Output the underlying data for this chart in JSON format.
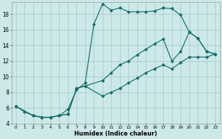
{
  "xlabel": "Humidex (Indice chaleur)",
  "bg_color": "#cce8e8",
  "grid_color": "#aacccc",
  "line_color": "#1a6e6e",
  "xlim": [
    -0.5,
    23.5
  ],
  "ylim": [
    4,
    19.5
  ],
  "xticks": [
    0,
    1,
    2,
    3,
    4,
    5,
    6,
    7,
    8,
    9,
    10,
    11,
    12,
    13,
    14,
    15,
    16,
    17,
    18,
    19,
    20,
    21,
    22,
    23
  ],
  "yticks": [
    4,
    6,
    8,
    10,
    12,
    14,
    16,
    18
  ],
  "series1_x": [
    0,
    1,
    2,
    3,
    4,
    5,
    6,
    7,
    8,
    9,
    10,
    11,
    12,
    13,
    14,
    15,
    16,
    17,
    18,
    19,
    20,
    21,
    22,
    23
  ],
  "series1_y": [
    6.2,
    5.5,
    5.0,
    4.8,
    4.8,
    5.0,
    5.8,
    8.3,
    9.2,
    16.7,
    19.3,
    18.5,
    18.8,
    18.3,
    18.3,
    18.3,
    18.4,
    18.8,
    18.7,
    17.9,
    15.7,
    14.9,
    13.2,
    12.9
  ],
  "series2_x": [
    0,
    2,
    3,
    4,
    5,
    6,
    7,
    8,
    10,
    11,
    12,
    13,
    14,
    15,
    16,
    17,
    18,
    19,
    20,
    21,
    22,
    23
  ],
  "series2_y": [
    6.2,
    5.0,
    4.8,
    4.8,
    5.0,
    5.2,
    8.5,
    8.8,
    9.5,
    10.5,
    11.5,
    12.0,
    12.8,
    13.5,
    14.2,
    14.8,
    12.0,
    13.2,
    15.7,
    14.9,
    13.2,
    12.9
  ],
  "series3_x": [
    0,
    2,
    3,
    4,
    5,
    6,
    7,
    8,
    10,
    11,
    12,
    13,
    14,
    15,
    16,
    17,
    18,
    19,
    20,
    21,
    22,
    23
  ],
  "series3_y": [
    6.2,
    5.0,
    4.8,
    4.8,
    5.0,
    5.2,
    8.5,
    8.8,
    7.5,
    8.0,
    8.5,
    9.2,
    9.8,
    10.5,
    11.0,
    11.5,
    11.0,
    11.8,
    12.5,
    12.5,
    12.5,
    12.9
  ]
}
